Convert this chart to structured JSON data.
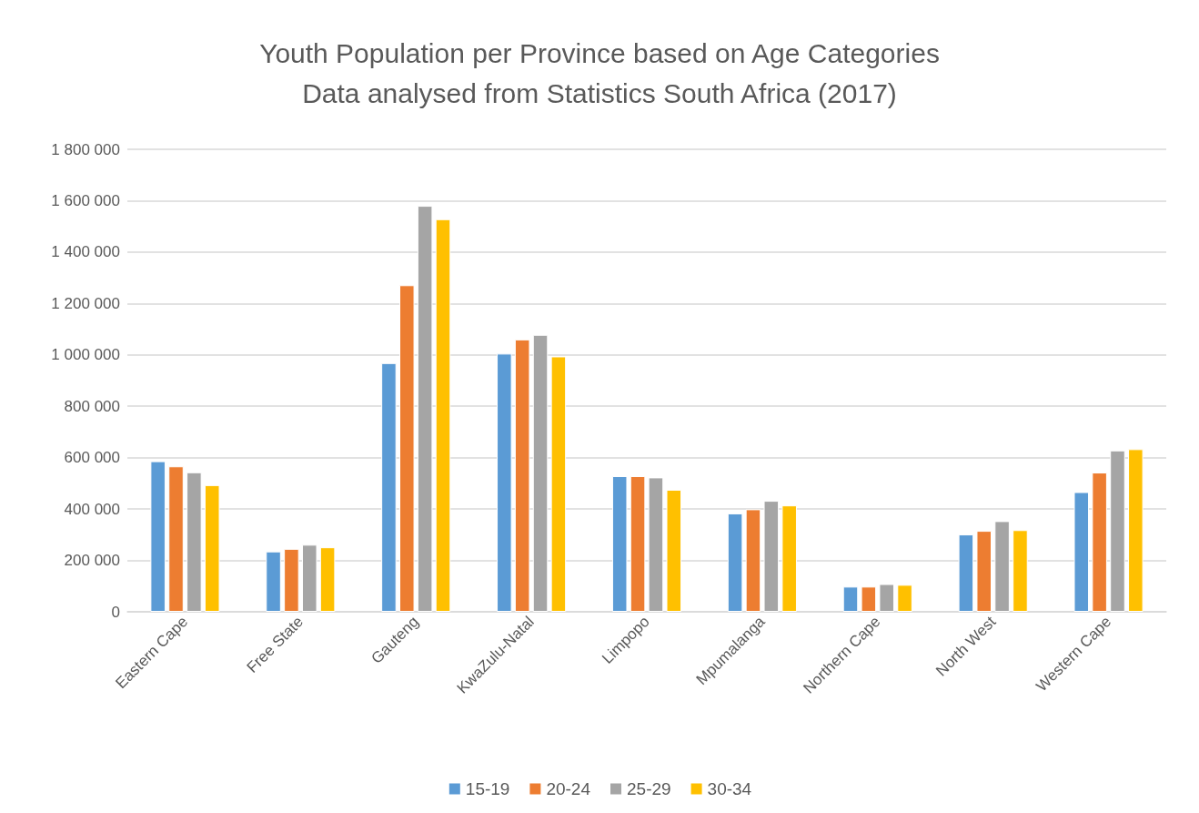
{
  "chart_data": {
    "type": "bar",
    "title": "Youth Population per Province based on Age Categories",
    "subtitle": "Data analysed from Statistics South Africa (2017)",
    "categories": [
      "Eastern Cape",
      "Free State",
      "Gauteng",
      "KwaZulu-Natal",
      "Limpopo",
      "Mpumalanga",
      "Northern Cape",
      "North West",
      "Western Cape"
    ],
    "series": [
      {
        "name": "15-19",
        "color": "#5b9bd5",
        "values": [
          586000,
          235000,
          968000,
          1005000,
          528000,
          383000,
          98000,
          301000,
          466000
        ]
      },
      {
        "name": "20-24",
        "color": "#ed7d31",
        "values": [
          566000,
          245000,
          1271000,
          1060000,
          528000,
          399000,
          98000,
          315000,
          542000
        ]
      },
      {
        "name": "25-29",
        "color": "#a5a5a5",
        "values": [
          543000,
          261000,
          1580000,
          1078000,
          523000,
          432000,
          108000,
          353000,
          628000
        ]
      },
      {
        "name": "30-34",
        "color": "#ffc000",
        "values": [
          493000,
          251000,
          1528000,
          994000,
          475000,
          414000,
          105000,
          318000,
          633000
        ]
      }
    ],
    "ylim": [
      0,
      1800000
    ],
    "yticks": [
      0,
      {
        "value": 200000,
        "label": "200 000"
      },
      {
        "value": 400000,
        "label": "400 000"
      },
      {
        "value": 600000,
        "label": "600 000"
      },
      {
        "value": 800000,
        "label": "800 000"
      },
      {
        "value": 1000000,
        "label": "1 000 000"
      },
      {
        "value": 1200000,
        "label": "1 200 000"
      },
      {
        "value": 1400000,
        "label": "1 400 000"
      },
      {
        "value": 1600000,
        "label": "1 600 000"
      },
      {
        "value": 1800000,
        "label": "1 800 000"
      }
    ],
    "grid": "y",
    "legend": "bottom"
  }
}
